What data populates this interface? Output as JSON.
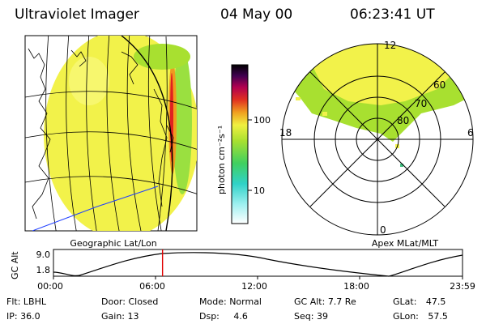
{
  "header": {
    "instrument": "Ultraviolet Imager",
    "date": "04 May 00",
    "time": "06:23:41 UT"
  },
  "colorbar": {
    "label": "photon cm⁻²s⁻¹",
    "ticks": [
      "100",
      "10"
    ]
  },
  "globe_panel": {
    "caption": "Geographic Lat/Lon"
  },
  "polar_panel": {
    "caption": "Apex MLat/MLT",
    "mlt_labels": {
      "top": "12",
      "left": "18",
      "right": "6",
      "bottom": "0"
    },
    "mlat_labels": [
      "60",
      "70",
      "80"
    ]
  },
  "timeline": {
    "ylabel": "GC Alt",
    "yticks": [
      "9.0",
      "1.8"
    ],
    "xticks": [
      "00:00",
      "06:00",
      "12:00",
      "18:00",
      "23:59"
    ],
    "current_time_hours": 6.4
  },
  "info": {
    "filter_label": "Flt:",
    "filter": "LBHL",
    "ip_label": "IP:",
    "ip": "36.0",
    "door_label": "Door:",
    "door": "Closed",
    "gain_label": "Gain:",
    "gain": "13",
    "mode_label": "Mode:",
    "mode": "Normal",
    "dsp_label": "Dsp:",
    "dsp": "4.6",
    "gcalt_label": "GC Alt:",
    "gcalt": "7.7 Re",
    "seq_label": "Seq:",
    "seq": "39",
    "glat_label": "GLat:",
    "glat": "47.5",
    "glon_label": "GLon:",
    "glon": "57.5"
  },
  "colors": {
    "image_yellow": "#f2f24a",
    "image_green": "#8fe03c",
    "marker_red": "#e00000",
    "frame": "#000000"
  }
}
